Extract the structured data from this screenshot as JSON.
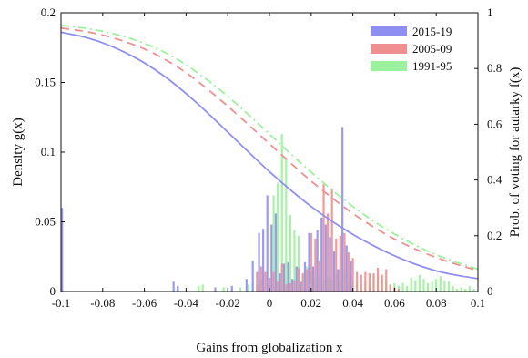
{
  "chart_data": {
    "type": "bar",
    "title": "",
    "xlabel": "Gains from globalization x",
    "ylabel_left": "Density g(x)",
    "ylabel_right": "Prob. of voting for autarky f(x)",
    "xlim": [
      -0.1,
      0.1
    ],
    "ylim_left": [
      0,
      0.2
    ],
    "ylim_right": [
      0,
      1
    ],
    "x_ticks": [
      "-0.1",
      "-0.08",
      "-0.06",
      "-0.04",
      "-0.02",
      "0",
      "0.02",
      "0.04",
      "0.06",
      "0.08",
      "0.1"
    ],
    "x_tick_values": [
      -0.1,
      -0.08,
      -0.06,
      -0.04,
      -0.02,
      0,
      0.02,
      0.04,
      0.06,
      0.08,
      0.1
    ],
    "y_left_ticks": [
      "0",
      "0.05",
      "0.1",
      "0.15",
      "0.2"
    ],
    "y_left_tick_values": [
      0,
      0.05,
      0.1,
      0.15,
      0.2
    ],
    "y_right_ticks": [
      "0",
      "0.2",
      "0.4",
      "0.6",
      "0.8",
      "1"
    ],
    "y_right_tick_values": [
      0,
      0.2,
      0.4,
      0.6,
      0.8,
      1
    ],
    "legend_position": "top-right",
    "grid": false,
    "series": [
      {
        "name": "2015-19",
        "color": "#8f8ff2",
        "histogram": {
          "x": [
            -0.0995,
            -0.046,
            -0.044,
            -0.026,
            -0.018,
            -0.011,
            -0.008,
            -0.005,
            -0.003,
            -0.001,
            0.001,
            0.003,
            0.005,
            0.007,
            0.009,
            0.011,
            0.013,
            0.015,
            0.017,
            0.019,
            0.021,
            0.023,
            0.025,
            0.027,
            0.029,
            0.031,
            0.033,
            0.035,
            0.037,
            0.039
          ],
          "values": [
            0.06,
            0.007,
            0.004,
            0.003,
            0.004,
            0.009,
            0.022,
            0.042,
            0.045,
            0.069,
            0.048,
            0.056,
            0.013,
            0.02,
            0.021,
            0.009,
            0.018,
            0.007,
            0.021,
            0.042,
            0.018,
            0.044,
            0.053,
            0.048,
            0.039,
            0.029,
            0.016,
            0.118,
            0.033,
            0.022
          ]
        },
        "curve_f": {
          "x": [
            -0.1,
            -0.09,
            -0.08,
            -0.07,
            -0.06,
            -0.05,
            -0.04,
            -0.03,
            -0.02,
            -0.01,
            0,
            0.01,
            0.02,
            0.03,
            0.04,
            0.05,
            0.06,
            0.07,
            0.08,
            0.09,
            0.1
          ],
          "values": [
            0.93,
            0.915,
            0.892,
            0.86,
            0.82,
            0.77,
            0.71,
            0.643,
            0.572,
            0.5,
            0.43,
            0.365,
            0.305,
            0.252,
            0.205,
            0.164,
            0.128,
            0.098,
            0.074,
            0.058,
            0.046
          ],
          "style": "solid"
        }
      },
      {
        "name": "2005-09",
        "color": "#f08f8f",
        "histogram": {
          "x": [
            -0.0995,
            -0.006,
            -0.004,
            -0.002,
            0.0,
            0.002,
            0.004,
            0.006,
            0.008,
            0.01,
            0.012,
            0.014,
            0.016,
            0.018,
            0.02,
            0.022,
            0.024,
            0.026,
            0.028,
            0.03,
            0.032,
            0.034,
            0.036,
            0.038,
            0.04,
            0.042,
            0.044,
            0.046,
            0.048,
            0.05,
            0.052,
            0.054,
            0.056,
            0.058,
            0.06,
            0.062
          ],
          "values": [
            0.05,
            0.014,
            0.018,
            0.014,
            0.01,
            0.014,
            0.007,
            0.02,
            0.005,
            0.006,
            0.008,
            0.017,
            0.013,
            0.016,
            0.042,
            0.038,
            0.022,
            0.077,
            0.056,
            0.074,
            0.038,
            0.04,
            0.042,
            0.028,
            0.024,
            0.014,
            0.012,
            0.014,
            0.013,
            0.013,
            0.017,
            0.012,
            0.016,
            0.005,
            0.003,
            0.002
          ]
        },
        "curve_f": {
          "x": [
            -0.1,
            -0.09,
            -0.08,
            -0.07,
            -0.06,
            -0.05,
            -0.04,
            -0.03,
            -0.02,
            -0.01,
            0,
            0.01,
            0.02,
            0.03,
            0.04,
            0.05,
            0.06,
            0.07,
            0.08,
            0.09,
            0.1
          ],
          "values": [
            0.945,
            0.935,
            0.92,
            0.898,
            0.87,
            0.832,
            0.785,
            0.728,
            0.665,
            0.598,
            0.53,
            0.462,
            0.396,
            0.336,
            0.28,
            0.231,
            0.188,
            0.152,
            0.122,
            0.097,
            0.075
          ],
          "style": "dashed"
        }
      },
      {
        "name": "1991-95",
        "color": "#9cf29c",
        "histogram": {
          "x": [
            -0.0995,
            -0.044,
            -0.034,
            -0.032,
            -0.022,
            -0.014,
            -0.01,
            -0.008,
            -0.006,
            -0.004,
            0.0,
            0.002,
            0.004,
            0.006,
            0.008,
            0.01,
            0.012,
            0.014,
            0.016,
            0.018,
            0.02,
            0.022,
            0.024,
            0.026,
            0.028,
            0.03,
            0.032,
            0.034,
            0.036,
            0.038,
            0.04,
            0.042,
            0.044,
            0.046,
            0.048,
            0.05,
            0.052,
            0.054,
            0.056,
            0.058,
            0.06,
            0.062,
            0.064,
            0.066,
            0.068,
            0.07,
            0.072,
            0.074,
            0.076,
            0.078,
            0.08,
            0.082,
            0.084,
            0.086,
            0.088,
            0.09,
            0.092,
            0.094,
            0.096,
            0.098
          ],
          "values": [
            0.002,
            0.003,
            0.004,
            0.005,
            0.003,
            0.003,
            0.005,
            0.006,
            0.005,
            0.008,
            0.009,
            0.069,
            0.078,
            0.113,
            0.096,
            0.055,
            0.044,
            0.04,
            0.012,
            0.018,
            0.014,
            0.01,
            0.012,
            0.008,
            0.01,
            0.009,
            0.012,
            0.008,
            0.015,
            0.006,
            0.006,
            0.007,
            0.005,
            0.006,
            0.004,
            0.012,
            0.011,
            0.009,
            0.007,
            0.005,
            0.006,
            0.004,
            0.006,
            0.004,
            0.01,
            0.008,
            0.012,
            0.009,
            0.006,
            0.007,
            0.009,
            0.011,
            0.008,
            0.007,
            0.004,
            0.002,
            0.003,
            0.002,
            0.004,
            0.002
          ]
        },
        "curve_f": {
          "x": [
            -0.1,
            -0.09,
            -0.08,
            -0.07,
            -0.06,
            -0.05,
            -0.04,
            -0.03,
            -0.02,
            -0.01,
            0,
            0.01,
            0.02,
            0.03,
            0.04,
            0.05,
            0.06,
            0.07,
            0.08,
            0.09,
            0.1
          ],
          "values": [
            0.955,
            0.946,
            0.933,
            0.915,
            0.89,
            0.857,
            0.813,
            0.76,
            0.7,
            0.634,
            0.565,
            0.495,
            0.428,
            0.364,
            0.305,
            0.252,
            0.206,
            0.166,
            0.132,
            0.104,
            0.08
          ],
          "style": "dash-dot"
        }
      }
    ]
  }
}
